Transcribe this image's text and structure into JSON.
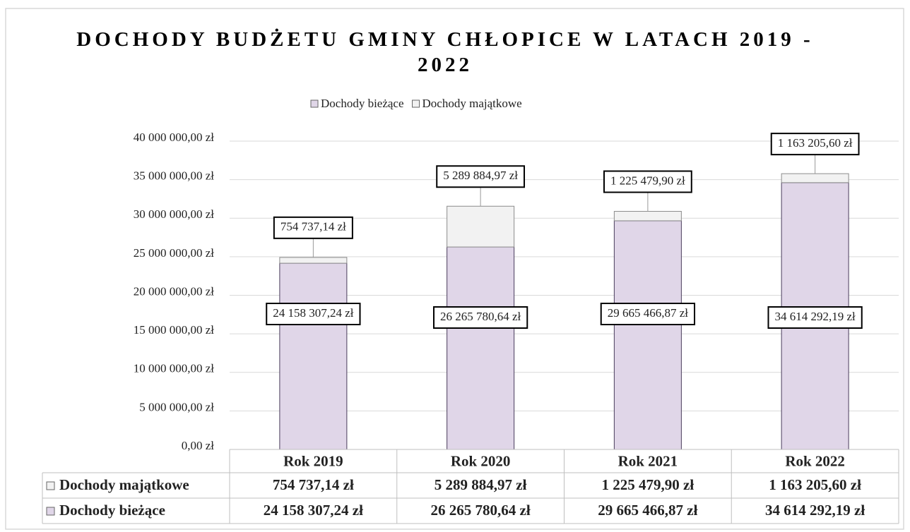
{
  "chart_data": {
    "type": "stacked_bar",
    "title": "DOCHODY BUDŻETU GMINY CHŁOPICE W LATACH 2019 - 2022",
    "categories": [
      "Rok 2019",
      "Rok 2020",
      "Rok 2021",
      "Rok 2022"
    ],
    "series": [
      {
        "name": "Dochody bieżące",
        "color": "#e0d6e8",
        "values": [
          24158307.24,
          26265780.64,
          29665466.87,
          34614292.19
        ],
        "value_labels": [
          "24 158 307,24 zł",
          "26 265 780,64 zł",
          "29 665 466,87 zł",
          "34 614 292,19 zł"
        ]
      },
      {
        "name": "Dochody majątkowe",
        "color": "#f2f2f2",
        "values": [
          754737.14,
          5289884.97,
          1225479.9,
          1163205.6
        ],
        "value_labels": [
          "754 737,14 zł",
          "5 289 884,97 zł",
          "1 225 479,90 zł",
          "1 163 205,60 zł"
        ]
      }
    ],
    "ylim": [
      0,
      40000000
    ],
    "yticks": [
      {
        "value": 0,
        "label": "0,00 zł"
      },
      {
        "value": 5000000,
        "label": "5 000 000,00 zł"
      },
      {
        "value": 10000000,
        "label": "10 000 000,00 zł"
      },
      {
        "value": 15000000,
        "label": "15 000 000,00 zł"
      },
      {
        "value": 20000000,
        "label": "20 000 000,00 zł"
      },
      {
        "value": 25000000,
        "label": "25 000 000,00 zł"
      },
      {
        "value": 30000000,
        "label": "30 000 000,00 zł"
      },
      {
        "value": 35000000,
        "label": "35 000 000,00 zł"
      },
      {
        "value": 40000000,
        "label": "40 000 000,00 zł"
      }
    ],
    "grid": true,
    "legend": "top",
    "data_table": true
  }
}
